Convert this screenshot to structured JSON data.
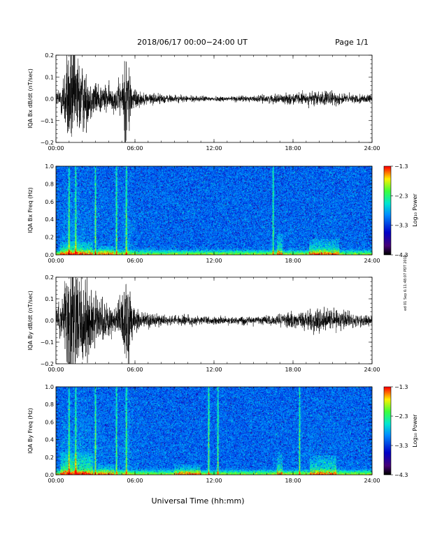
{
  "header": {
    "title": "2018/06/17  00:00−24:00 UT",
    "page": "Page 1/1"
  },
  "footer": {
    "xlabel": "Universal Time (hh:mm)",
    "side_stamp": "ed 01 Sep 6:11:48:07 PDT 2019"
  },
  "chart_data": [
    {
      "type": "line",
      "ylabel": "IQA Bx dB/dt (nT/sec)",
      "x_ticks": [
        "00:00",
        "06:00",
        "12:00",
        "18:00",
        "24:00"
      ],
      "x_range_hours": [
        0,
        24
      ],
      "ylim": [
        -0.2,
        0.2
      ],
      "y_ticks": [
        "0.2",
        "0.1",
        "0.0",
        "−0.1",
        "−0.2"
      ],
      "amplitude_envelope": [
        {
          "hour": 0.0,
          "amp": 0.03
        },
        {
          "hour": 0.3,
          "amp": 0.05
        },
        {
          "hour": 0.6,
          "amp": 0.12
        },
        {
          "hour": 1.0,
          "amp": 0.22
        },
        {
          "hour": 1.5,
          "amp": 0.2
        },
        {
          "hour": 2.0,
          "amp": 0.14
        },
        {
          "hour": 2.5,
          "amp": 0.09
        },
        {
          "hour": 3.0,
          "amp": 0.07
        },
        {
          "hour": 3.5,
          "amp": 0.06
        },
        {
          "hour": 4.0,
          "amp": 0.05
        },
        {
          "hour": 4.5,
          "amp": 0.05
        },
        {
          "hour": 5.0,
          "amp": 0.08
        },
        {
          "hour": 5.4,
          "amp": 0.22
        },
        {
          "hour": 5.8,
          "amp": 0.05
        },
        {
          "hour": 6.5,
          "amp": 0.025
        },
        {
          "hour": 9.0,
          "amp": 0.015
        },
        {
          "hour": 10.0,
          "amp": 0.012
        },
        {
          "hour": 12.0,
          "amp": 0.01
        },
        {
          "hour": 15.0,
          "amp": 0.012
        },
        {
          "hour": 17.0,
          "amp": 0.018
        },
        {
          "hour": 20.0,
          "amp": 0.03
        },
        {
          "hour": 21.0,
          "amp": 0.028
        },
        {
          "hour": 22.0,
          "amp": 0.02
        },
        {
          "hour": 24.0,
          "amp": 0.015
        }
      ]
    },
    {
      "type": "heatmap",
      "ylabel": "IQA Bx Freq (Hz)",
      "x_ticks": [
        "00:00",
        "06:00",
        "12:00",
        "18:00",
        "24:00"
      ],
      "x_range_hours": [
        0,
        24
      ],
      "ylim": [
        0.0,
        1.0
      ],
      "y_ticks": [
        "1.0",
        "0.8",
        "0.6",
        "0.4",
        "0.2",
        "0.0"
      ],
      "colorbar": {
        "label": "Log₁₀ Power",
        "range": [
          -4.3,
          -1.3
        ],
        "ticks": [
          "−1.3",
          "−2.3",
          "−3.3",
          "−4.3"
        ]
      },
      "vertical_streaks_hours": [
        1.0,
        1.5,
        3.0,
        4.6,
        5.35,
        16.5
      ],
      "low_freq_enhancements": [
        {
          "hours": [
            0.3,
            2.8
          ],
          "top_hz": 0.15
        },
        {
          "hours": [
            3.2,
            4.4
          ],
          "top_hz": 0.1
        },
        {
          "hours": [
            19.2,
            21.5
          ],
          "top_hz": 0.18
        },
        {
          "hours": [
            16.8,
            17.2
          ],
          "top_hz": 0.25
        }
      ]
    },
    {
      "type": "line",
      "ylabel": "IQA By dB/dt (nT/sec)",
      "x_ticks": [
        "00:00",
        "06:00",
        "12:00",
        "18:00",
        "24:00"
      ],
      "x_range_hours": [
        0,
        24
      ],
      "ylim": [
        -0.2,
        0.2
      ],
      "y_ticks": [
        "0.2",
        "0.1",
        "0.0",
        "−0.1",
        "−0.2"
      ],
      "amplitude_envelope": [
        {
          "hour": 0.0,
          "amp": 0.04
        },
        {
          "hour": 0.3,
          "amp": 0.08
        },
        {
          "hour": 0.6,
          "amp": 0.15
        },
        {
          "hour": 1.0,
          "amp": 0.24
        },
        {
          "hour": 1.5,
          "amp": 0.24
        },
        {
          "hour": 2.0,
          "amp": 0.2
        },
        {
          "hour": 2.5,
          "amp": 0.14
        },
        {
          "hour": 3.0,
          "amp": 0.12
        },
        {
          "hour": 3.5,
          "amp": 0.08
        },
        {
          "hour": 4.0,
          "amp": 0.06
        },
        {
          "hour": 4.5,
          "amp": 0.06
        },
        {
          "hour": 5.0,
          "amp": 0.1
        },
        {
          "hour": 5.4,
          "amp": 0.24
        },
        {
          "hour": 5.8,
          "amp": 0.06
        },
        {
          "hour": 6.5,
          "amp": 0.03
        },
        {
          "hour": 9.0,
          "amp": 0.02
        },
        {
          "hour": 11.0,
          "amp": 0.018
        },
        {
          "hour": 13.0,
          "amp": 0.015
        },
        {
          "hour": 16.0,
          "amp": 0.018
        },
        {
          "hour": 18.0,
          "amp": 0.03
        },
        {
          "hour": 19.5,
          "amp": 0.05
        },
        {
          "hour": 21.0,
          "amp": 0.045
        },
        {
          "hour": 22.5,
          "amp": 0.03
        },
        {
          "hour": 24.0,
          "amp": 0.02
        }
      ]
    },
    {
      "type": "heatmap",
      "ylabel": "IQA By Freq (Hz)",
      "x_ticks": [
        "00:00",
        "06:00",
        "12:00",
        "18:00",
        "24:00"
      ],
      "x_range_hours": [
        0,
        24
      ],
      "ylim": [
        0.0,
        1.0
      ],
      "y_ticks": [
        "1.0",
        "0.8",
        "0.6",
        "0.4",
        "0.2",
        "0.0"
      ],
      "colorbar": {
        "label": "Log₁₀ Power",
        "range": [
          -4.3,
          -1.3
        ],
        "ticks": [
          "−1.3",
          "−2.3",
          "−3.3",
          "−4.3"
        ]
      },
      "vertical_streaks_hours": [
        1.0,
        1.5,
        3.0,
        4.6,
        5.35,
        11.6,
        12.3,
        18.5
      ],
      "low_freq_enhancements": [
        {
          "hours": [
            0.3,
            2.8
          ],
          "top_hz": 0.25
        },
        {
          "hours": [
            3.2,
            4.4
          ],
          "top_hz": 0.12
        },
        {
          "hours": [
            9.0,
            11.0
          ],
          "top_hz": 0.12
        },
        {
          "hours": [
            19.3,
            21.3
          ],
          "top_hz": 0.22
        },
        {
          "hours": [
            16.8,
            17.2
          ],
          "top_hz": 0.25
        }
      ]
    }
  ]
}
